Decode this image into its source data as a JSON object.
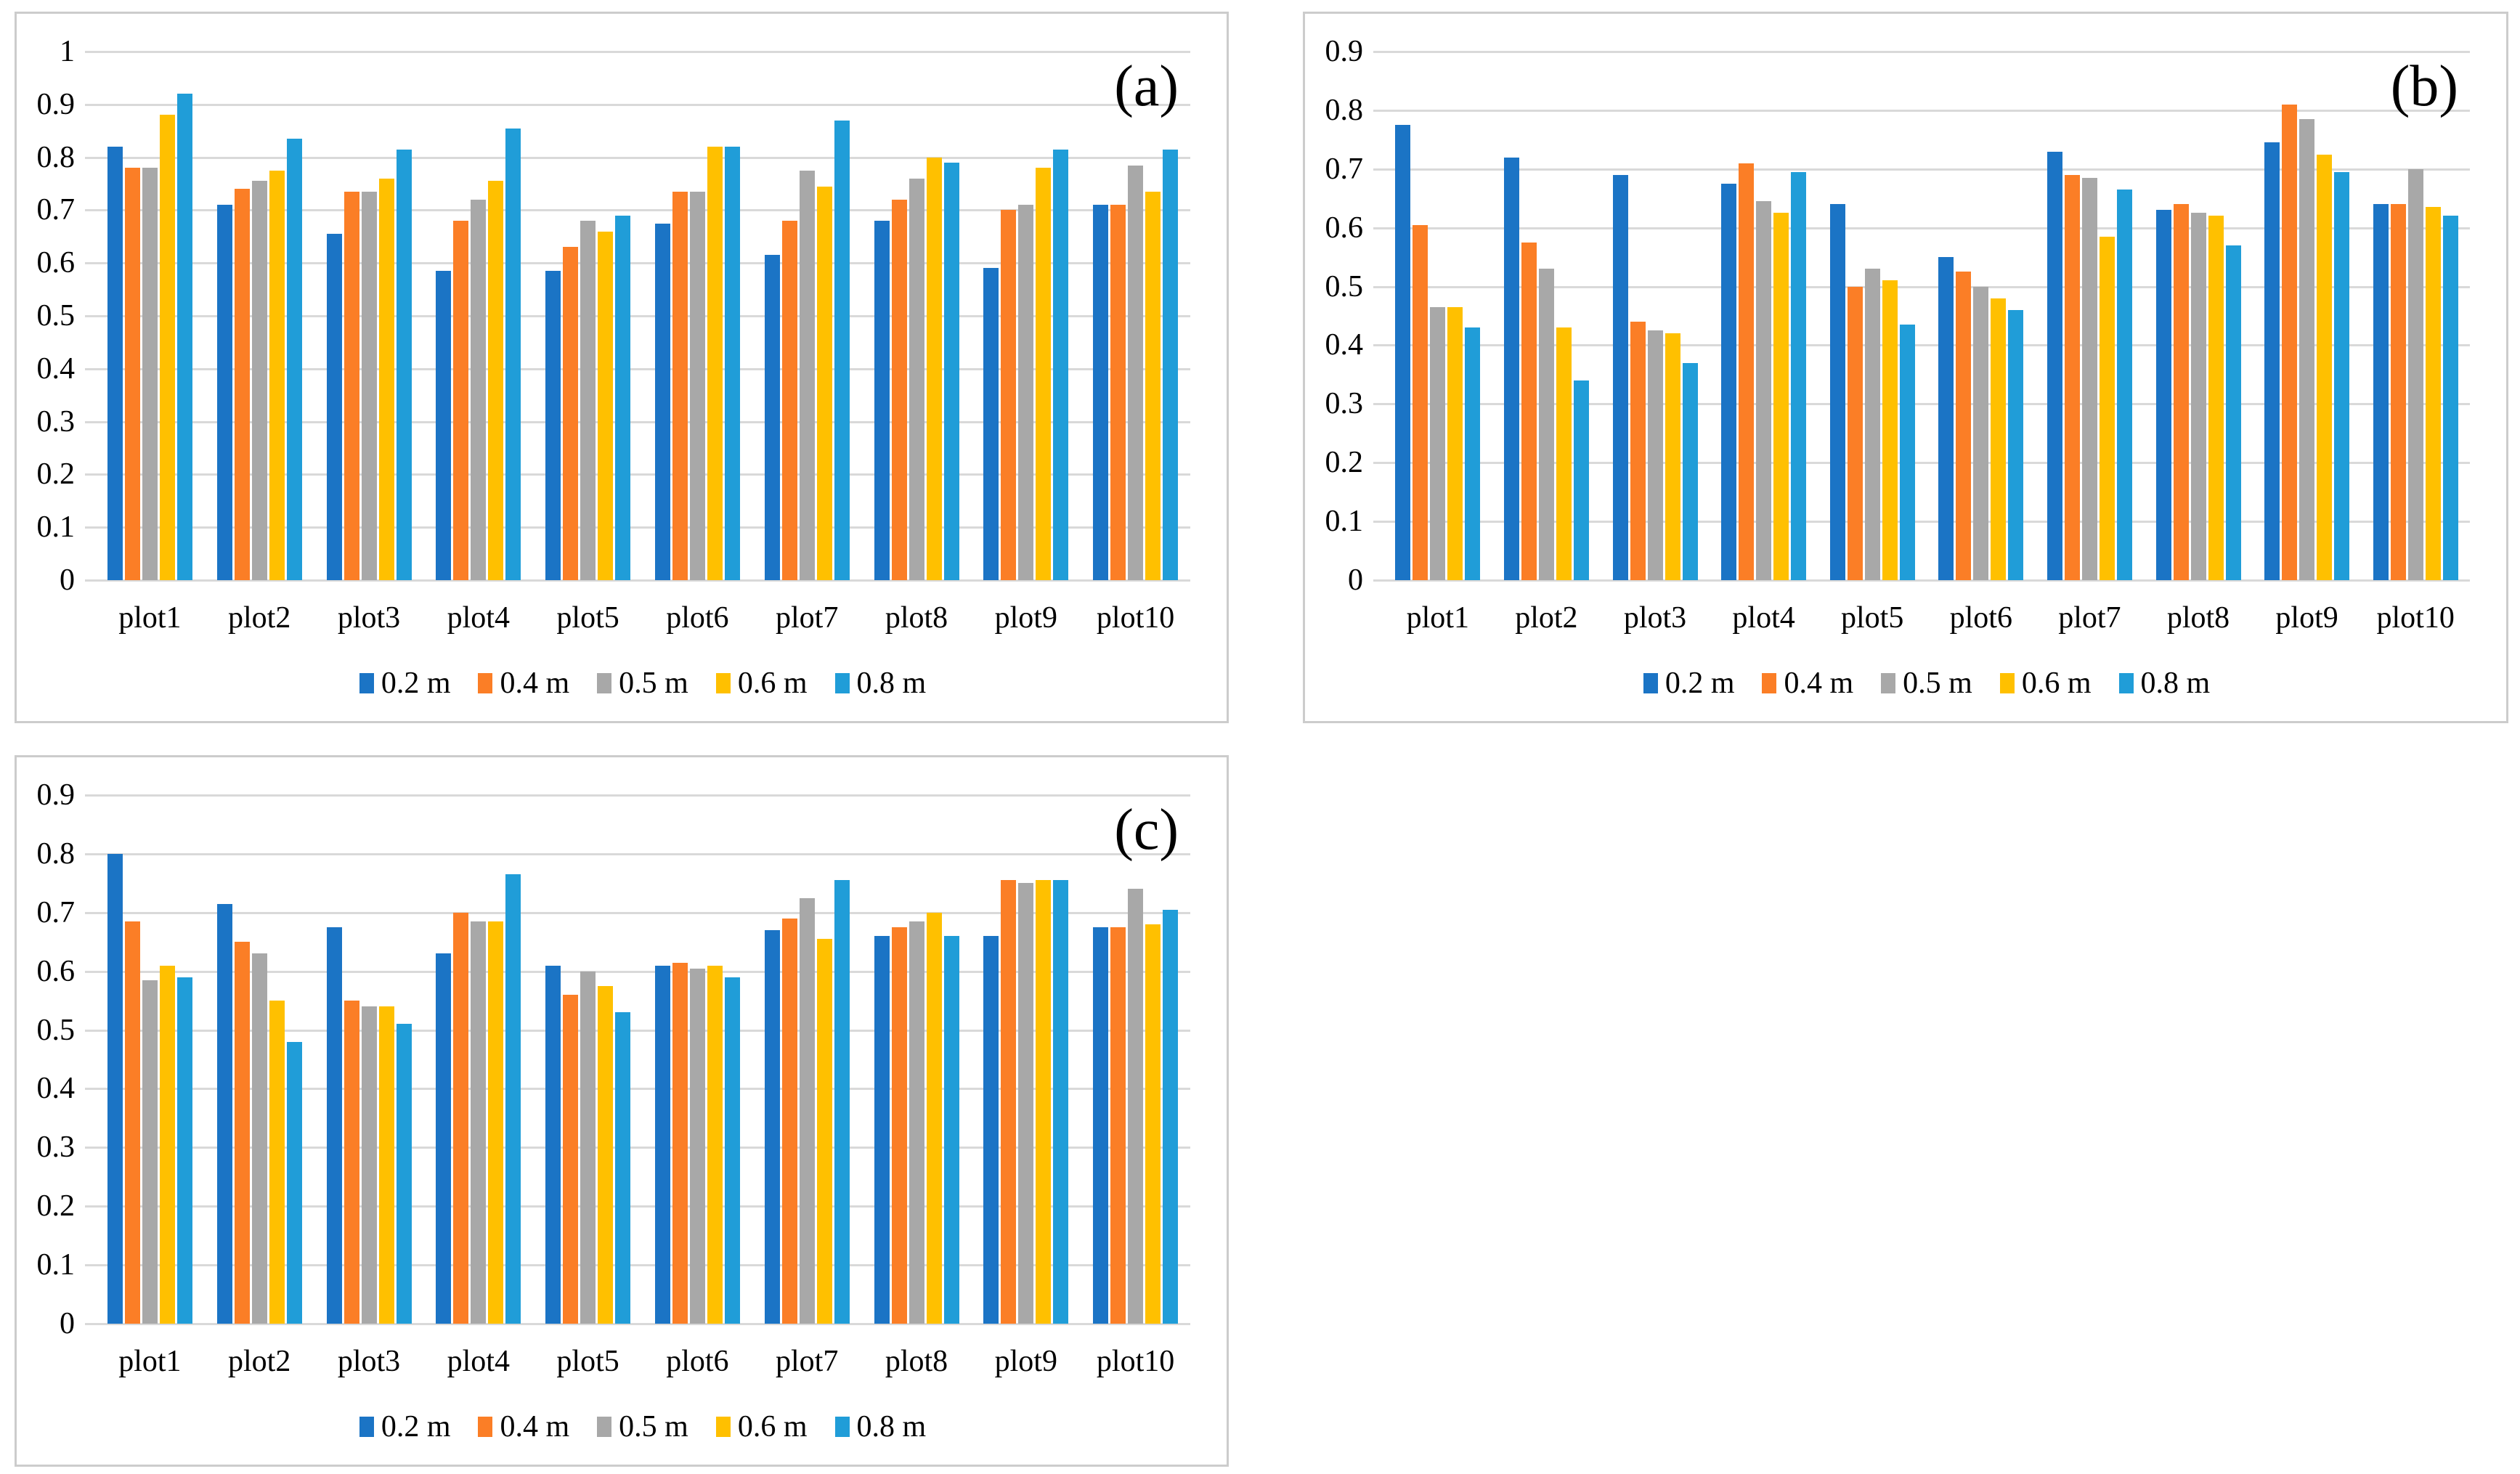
{
  "figure": {
    "background_color": "#ffffff",
    "panel_border_color": "#cccccc",
    "gridline_color": "#d9d9d9",
    "text_color": "#000000"
  },
  "palette": {
    "series_0_2m": "#1b74c5",
    "series_0_4m": "#fb7e26",
    "series_0_5m": "#a8a8a8",
    "series_0_6m": "#ffc000",
    "series_0_8m": "#209dd8"
  },
  "chart_data": [
    {
      "type": "bar",
      "title": "(a)",
      "xlabel": "",
      "ylabel": "",
      "ylim": [
        0,
        1
      ],
      "ytick_step": 0.1,
      "grid": true,
      "legend_position": "bottom",
      "y_tick_labels": [
        "1",
        "0.9",
        "0.8",
        "0.7",
        "0.6",
        "0.5",
        "0.4",
        "0.3",
        "0.2",
        "0.1",
        "0"
      ],
      "categories": [
        "plot1",
        "plot2",
        "plot3",
        "plot4",
        "plot5",
        "plot6",
        "plot7",
        "plot8",
        "plot9",
        "plot10"
      ],
      "series": [
        {
          "name": "0.2 m",
          "color_key": "series_0_2m",
          "values": [
            0.82,
            0.71,
            0.655,
            0.585,
            0.585,
            0.675,
            0.615,
            0.68,
            0.59,
            0.71
          ]
        },
        {
          "name": "0.4 m",
          "color_key": "series_0_4m",
          "values": [
            0.78,
            0.74,
            0.735,
            0.68,
            0.63,
            0.735,
            0.68,
            0.72,
            0.7,
            0.71
          ]
        },
        {
          "name": "0.5 m",
          "color_key": "series_0_5m",
          "values": [
            0.78,
            0.755,
            0.735,
            0.72,
            0.68,
            0.735,
            0.775,
            0.76,
            0.71,
            0.785
          ]
        },
        {
          "name": "0.6 m",
          "color_key": "series_0_6m",
          "values": [
            0.88,
            0.775,
            0.76,
            0.755,
            0.66,
            0.82,
            0.745,
            0.8,
            0.78,
            0.735
          ]
        },
        {
          "name": "0.8 m",
          "color_key": "series_0_8m",
          "values": [
            0.92,
            0.835,
            0.815,
            0.855,
            0.69,
            0.82,
            0.87,
            0.79,
            0.815,
            0.815
          ]
        }
      ]
    },
    {
      "type": "bar",
      "title": "(b)",
      "xlabel": "",
      "ylabel": "",
      "ylim": [
        0,
        0.9
      ],
      "ytick_step": 0.1,
      "grid": true,
      "legend_position": "bottom",
      "y_tick_labels": [
        "0.9",
        "0.8",
        "0.7",
        "0.6",
        "0.5",
        "0.4",
        "0.3",
        "0.2",
        "0.1",
        "0"
      ],
      "categories": [
        "plot1",
        "plot2",
        "plot3",
        "plot4",
        "plot5",
        "plot6",
        "plot7",
        "plot8",
        "plot9",
        "plot10"
      ],
      "series": [
        {
          "name": "0.2 m",
          "color_key": "series_0_2m",
          "values": [
            0.775,
            0.72,
            0.69,
            0.675,
            0.64,
            0.55,
            0.73,
            0.63,
            0.745,
            0.64
          ]
        },
        {
          "name": "0.4 m",
          "color_key": "series_0_4m",
          "values": [
            0.605,
            0.575,
            0.44,
            0.71,
            0.5,
            0.525,
            0.69,
            0.64,
            0.81,
            0.64
          ]
        },
        {
          "name": "0.5 m",
          "color_key": "series_0_5m",
          "values": [
            0.465,
            0.53,
            0.425,
            0.645,
            0.53,
            0.5,
            0.685,
            0.625,
            0.785,
            0.7
          ]
        },
        {
          "name": "0.6 m",
          "color_key": "series_0_6m",
          "values": [
            0.465,
            0.43,
            0.42,
            0.625,
            0.51,
            0.48,
            0.585,
            0.62,
            0.725,
            0.635
          ]
        },
        {
          "name": "0.8 m",
          "color_key": "series_0_8m",
          "values": [
            0.43,
            0.34,
            0.37,
            0.695,
            0.435,
            0.46,
            0.665,
            0.57,
            0.695,
            0.62
          ]
        }
      ]
    },
    {
      "type": "bar",
      "title": "(c)",
      "xlabel": "",
      "ylabel": "",
      "ylim": [
        0,
        0.9
      ],
      "ytick_step": 0.1,
      "grid": true,
      "legend_position": "bottom",
      "y_tick_labels": [
        "0.9",
        "0.8",
        "0.7",
        "0.6",
        "0.5",
        "0.4",
        "0.3",
        "0.2",
        "0.1",
        "0"
      ],
      "categories": [
        "plot1",
        "plot2",
        "plot3",
        "plot4",
        "plot5",
        "plot6",
        "plot7",
        "plot8",
        "plot9",
        "plot10"
      ],
      "series": [
        {
          "name": "0.2 m",
          "color_key": "series_0_2m",
          "values": [
            0.8,
            0.715,
            0.675,
            0.63,
            0.61,
            0.61,
            0.67,
            0.66,
            0.66,
            0.675
          ]
        },
        {
          "name": "0.4 m",
          "color_key": "series_0_4m",
          "values": [
            0.685,
            0.65,
            0.55,
            0.7,
            0.56,
            0.615,
            0.69,
            0.675,
            0.755,
            0.675
          ]
        },
        {
          "name": "0.5 m",
          "color_key": "series_0_5m",
          "values": [
            0.585,
            0.63,
            0.54,
            0.685,
            0.6,
            0.605,
            0.725,
            0.685,
            0.75,
            0.74
          ]
        },
        {
          "name": "0.6 m",
          "color_key": "series_0_6m",
          "values": [
            0.61,
            0.55,
            0.54,
            0.685,
            0.575,
            0.61,
            0.655,
            0.7,
            0.755,
            0.68
          ]
        },
        {
          "name": "0.8 m",
          "color_key": "series_0_8m",
          "values": [
            0.59,
            0.48,
            0.51,
            0.765,
            0.53,
            0.59,
            0.755,
            0.66,
            0.755,
            0.705
          ]
        }
      ]
    }
  ]
}
